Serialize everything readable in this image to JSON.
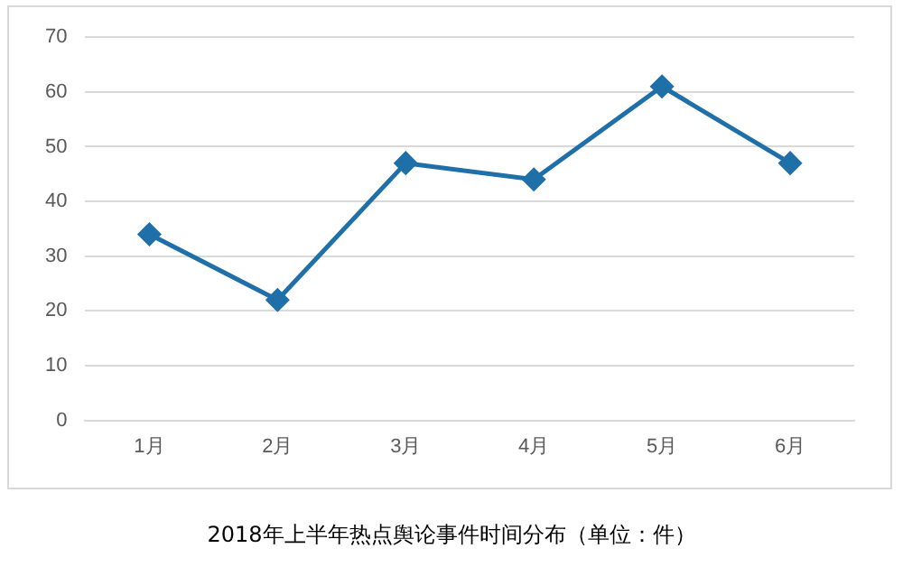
{
  "chart_data": {
    "type": "line",
    "title": "2018年上半年热点舆论事件时间分布（单位：件）",
    "categories": [
      "1月",
      "2月",
      "3月",
      "4月",
      "5月",
      "6月"
    ],
    "series": [
      {
        "color": "#1f6fa8",
        "values": [
          34,
          22,
          47,
          44,
          61,
          47
        ]
      }
    ],
    "ylim": [
      0,
      70
    ],
    "yticks": [
      0,
      10,
      20,
      30,
      40,
      50,
      60,
      70
    ],
    "grid": "y",
    "legend": false,
    "marker": "diamond",
    "line_style": "solid"
  }
}
